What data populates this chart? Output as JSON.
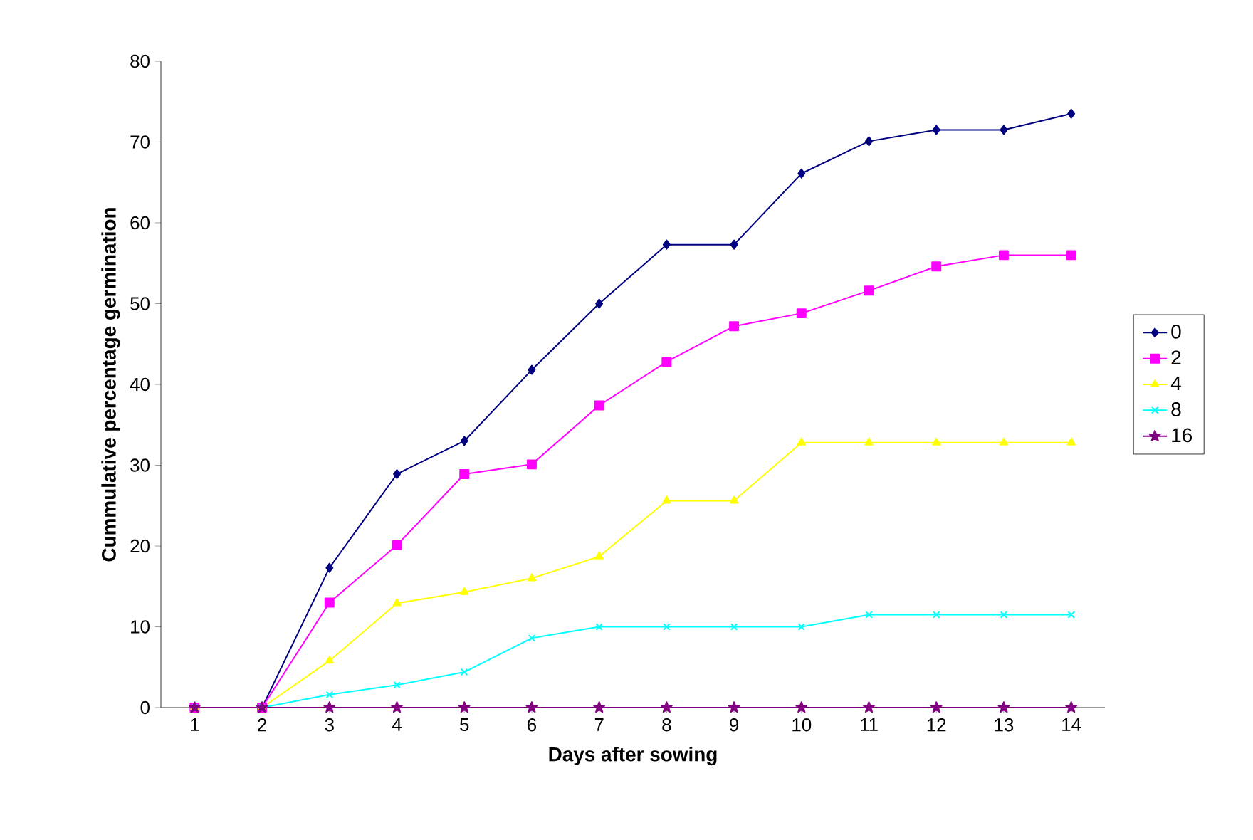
{
  "chart_data": {
    "type": "line",
    "xlabel": "Days after sowing",
    "ylabel": "Cummulative percentage germination",
    "categories": [
      "1",
      "2",
      "3",
      "4",
      "5",
      "6",
      "7",
      "8",
      "9",
      "10",
      "11",
      "12",
      "13",
      "14"
    ],
    "ylim": [
      0,
      80
    ],
    "yticks": [
      0,
      10,
      20,
      30,
      40,
      50,
      60,
      70,
      80
    ],
    "legend": "right",
    "grid": false,
    "series": [
      {
        "name": "0",
        "color": "#000080",
        "marker": "diamond",
        "values": [
          0,
          0,
          17.3,
          28.9,
          33,
          41.8,
          50,
          57.3,
          57.3,
          66.1,
          70.1,
          71.5,
          71.5,
          73.5
        ]
      },
      {
        "name": "2",
        "color": "#ff00ff",
        "marker": "square",
        "values": [
          0,
          0,
          13,
          20.1,
          28.9,
          30.1,
          37.4,
          42.8,
          47.2,
          48.8,
          51.6,
          54.6,
          56,
          56
        ]
      },
      {
        "name": "4",
        "color": "#ffff00",
        "marker": "triangle",
        "values": [
          0,
          0,
          5.8,
          12.9,
          14.3,
          16,
          18.7,
          25.6,
          25.6,
          32.8,
          32.8,
          32.8,
          32.8,
          32.8
        ]
      },
      {
        "name": "8",
        "color": "#00ffff",
        "marker": "cross",
        "values": [
          0,
          0,
          1.6,
          2.8,
          4.4,
          8.6,
          10,
          10,
          10,
          10,
          11.5,
          11.5,
          11.5,
          11.5
        ]
      },
      {
        "name": "16",
        "color": "#800080",
        "marker": "star",
        "values": [
          0,
          0,
          0,
          0,
          0,
          0,
          0,
          0,
          0,
          0,
          0,
          0,
          0,
          0
        ]
      }
    ]
  }
}
